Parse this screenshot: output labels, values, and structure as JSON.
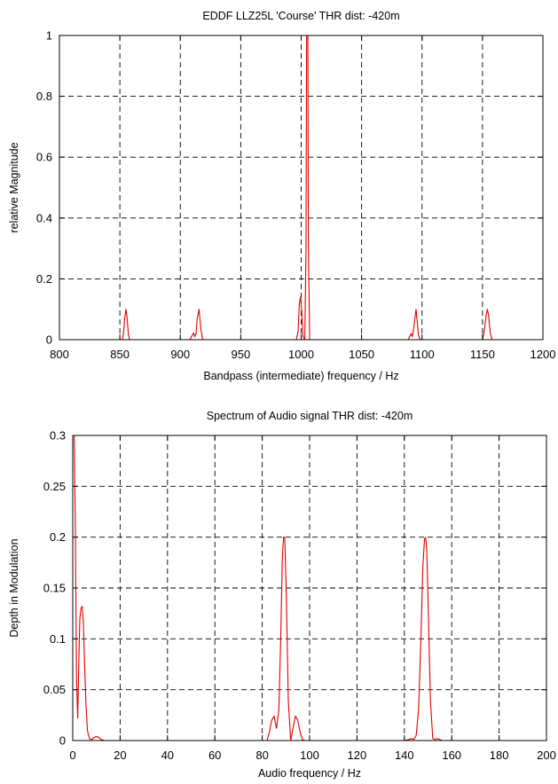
{
  "chart_data": [
    {
      "type": "line",
      "title": "EDDF LLZ25L 'Course'  THR dist: -420m",
      "xlabel": "Bandpass (intermediate) frequency / Hz",
      "ylabel": "relative Magnitude",
      "xlim": [
        800,
        1200
      ],
      "ylim": [
        0,
        1
      ],
      "xticks": [
        800,
        850,
        900,
        950,
        1000,
        1050,
        1100,
        1150,
        1200
      ],
      "xtick_labels": [
        "800",
        "850",
        "900",
        "950",
        "1000",
        "1050",
        "1100",
        "1150",
        "1200"
      ],
      "yticks": [
        0,
        0.2,
        0.4,
        0.6,
        0.8,
        1
      ],
      "ytick_labels": [
        "0",
        "0.2",
        "0.4",
        "0.6",
        "0.8",
        "1"
      ],
      "grid": true,
      "series": [
        {
          "color": "#e00000",
          "x": [
            800,
            852,
            853,
            854,
            855,
            856,
            857,
            858,
            908,
            909.5,
            911,
            912,
            913,
            914,
            915.5,
            917,
            918.5,
            996,
            997.5,
            998.5,
            999.5,
            1000.5,
            1001.5,
            1003,
            1004,
            1004.5,
            1005.5,
            1006,
            1007,
            1088.5,
            1090,
            1091,
            1092,
            1093.5,
            1095,
            1096,
            1097,
            1098.5,
            1150,
            1151.5,
            1153,
            1154,
            1155,
            1156.5,
            1158,
            1200
          ],
          "y": [
            0,
            0,
            0.02,
            0.07,
            0.1,
            0.07,
            0.02,
            0,
            0,
            0.012,
            0.022,
            0.01,
            0.02,
            0.07,
            0.1,
            0.035,
            0,
            0,
            0.03,
            0.12,
            0.14,
            0.09,
            0.01,
            0,
            0.3,
            1,
            1,
            0.3,
            0,
            0,
            0.012,
            0.02,
            0.01,
            0.05,
            0.1,
            0.06,
            0.015,
            0,
            0,
            0.03,
            0.08,
            0.1,
            0.08,
            0.02,
            0,
            0
          ]
        }
      ]
    },
    {
      "type": "line",
      "title": "Spectrum of Audio signal  THR dist: -420m",
      "xlabel": "Audio frequency / Hz",
      "ylabel": "Depth in Modulation",
      "xlim": [
        0,
        200
      ],
      "ylim": [
        0,
        0.3
      ],
      "xticks": [
        0,
        20,
        40,
        60,
        80,
        100,
        120,
        140,
        160,
        180,
        200
      ],
      "xtick_labels": [
        "0",
        "20",
        "40",
        "60",
        "80",
        "100",
        "120",
        "140",
        "160",
        "180",
        "200"
      ],
      "yticks": [
        0,
        0.05,
        0.1,
        0.15,
        0.2,
        0.25,
        0.3
      ],
      "ytick_labels": [
        "0",
        "0.05",
        "0.1",
        "0.15",
        "0.2",
        "0.25",
        "0.3"
      ],
      "grid": true,
      "series": [
        {
          "color": "#e00000",
          "x": [
            0,
            0.6,
            1.1,
            1.6,
            2.1,
            2.5,
            3,
            3.5,
            4,
            4.5,
            5,
            5.6,
            6.2,
            7,
            8,
            9,
            10,
            11,
            12,
            13.5,
            20,
            82,
            83,
            84,
            85,
            86,
            87,
            87.8,
            88.5,
            89,
            89.5,
            90.2,
            91,
            92,
            93,
            94,
            95,
            96,
            97,
            98,
            140,
            142,
            143,
            144,
            145,
            146,
            147,
            147.8,
            148.5,
            149,
            149.5,
            150.2,
            151,
            152,
            153,
            154,
            155,
            156,
            200
          ],
          "y": [
            0.3,
            0.3,
            0.21,
            0.06,
            0.022,
            0.07,
            0.12,
            0.13,
            0.132,
            0.115,
            0.075,
            0.035,
            0.01,
            0.002,
            0.001,
            0.003,
            0.004,
            0.003,
            0.001,
            0,
            0,
            0,
            0.008,
            0.02,
            0.024,
            0.012,
            0.03,
            0.1,
            0.18,
            0.2,
            0.2,
            0.14,
            0.04,
            0,
            0.012,
            0.024,
            0.02,
            0.008,
            0.001,
            0,
            0,
            0.001,
            0.002,
            0.001,
            0.005,
            0.03,
            0.1,
            0.17,
            0.198,
            0.2,
            0.185,
            0.12,
            0.04,
            0.002,
            0.001,
            0.002,
            0.001,
            0,
            0
          ]
        }
      ]
    }
  ]
}
